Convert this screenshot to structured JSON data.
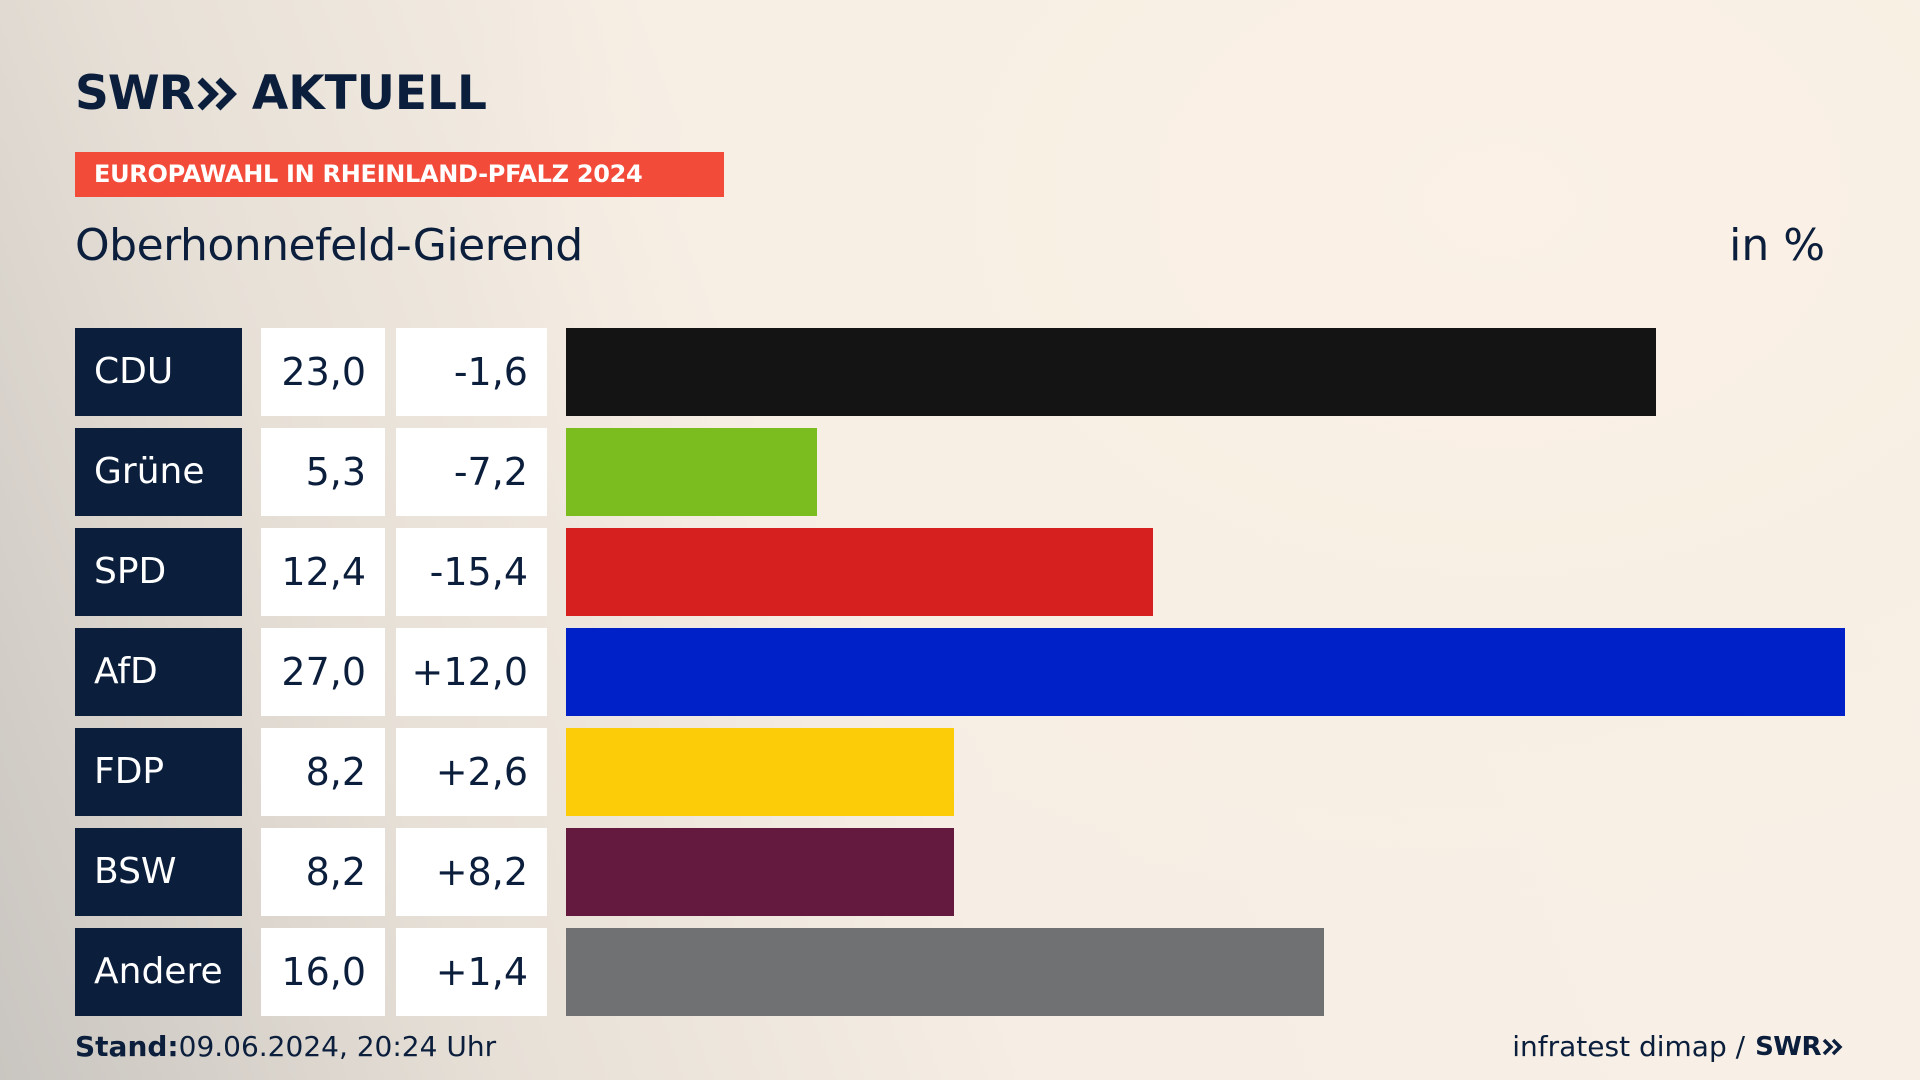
{
  "header": {
    "brand": "SWR",
    "brand_icon": "double-chevron-icon",
    "subtitle": "AKTUELL",
    "banner": "EUROPAWAHL IN RHEINLAND-PFALZ 2024",
    "place": "Oberhonnefeld-Gierend",
    "unit": "in %"
  },
  "colors": {
    "navy": "#0b1e3c",
    "banner": "#f24b3a"
  },
  "chart_data": {
    "type": "bar",
    "orientation": "horizontal",
    "title": "Oberhonnefeld-Gierend",
    "ylabel": "in %",
    "xlim": [
      0,
      27.0
    ],
    "categories": [
      "CDU",
      "Grüne",
      "SPD",
      "AfD",
      "FDP",
      "BSW",
      "Andere"
    ],
    "values": [
      23.0,
      5.3,
      12.4,
      27.0,
      8.2,
      8.2,
      16.0
    ],
    "value_labels": [
      "23,0",
      "5,3",
      "12,4",
      "27,0",
      "8,2",
      "8,2",
      "16,0"
    ],
    "diff_labels": [
      "-1,6",
      "-7,2",
      "-15,4",
      "+12,0",
      "+2,6",
      "+8,2",
      "+1,4"
    ],
    "diffs": [
      -1.6,
      -7.2,
      -15.4,
      12.0,
      2.6,
      8.2,
      1.4
    ],
    "colors": [
      "#141414",
      "#7bbd1e",
      "#d61f1f",
      "#0020c8",
      "#fdcc09",
      "#64193f",
      "#707173"
    ]
  },
  "footer": {
    "stand_label": "Stand:",
    "stand_value": "09.06.2024, 20:24 Uhr",
    "source": "infratest dimap /",
    "source_brand": "SWR"
  }
}
